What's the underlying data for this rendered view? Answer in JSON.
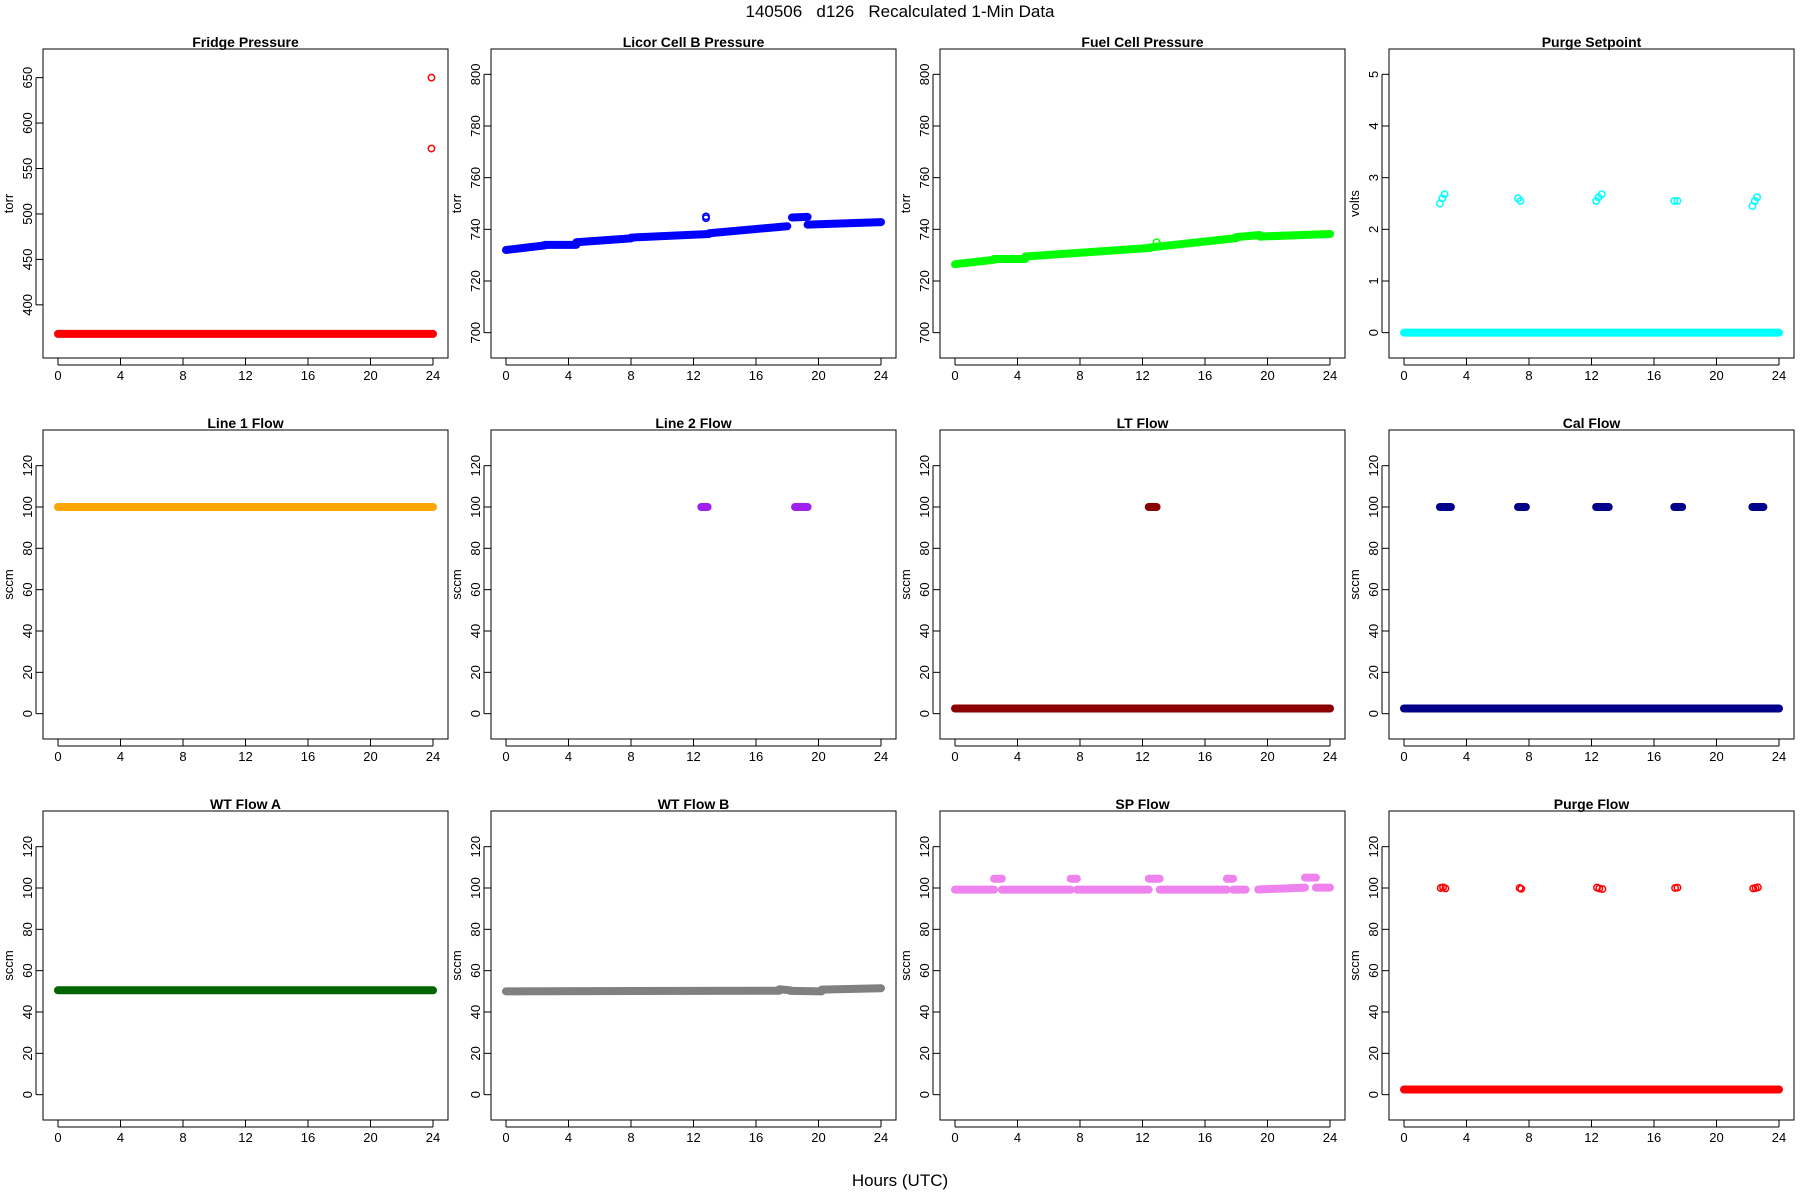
{
  "page": {
    "title": "140506   d126   Recalculated 1-Min Data",
    "xlabel": "Hours (UTC)"
  },
  "chart_data": [
    {
      "type": "scatter",
      "title": "Fridge Pressure",
      "xlabel": "",
      "ylabel": "torr",
      "xlim": [
        0,
        24
      ],
      "xticks": [
        0,
        4,
        8,
        12,
        16,
        20,
        24
      ],
      "ylim": [
        358,
        665
      ],
      "yticks": [
        400,
        450,
        500,
        550,
        600,
        650
      ],
      "series": [
        {
          "color": "#ff0000",
          "segments": [
            {
              "x0": 0,
              "x1": 24,
              "y0": 368,
              "y1": 368
            }
          ],
          "points": [
            {
              "x": 23.9,
              "y": 650
            },
            {
              "x": 23.9,
              "y": 572
            }
          ]
        }
      ]
    },
    {
      "type": "scatter",
      "title": "Licor Cell B Pressure",
      "xlabel": "",
      "ylabel": "torr",
      "xlim": [
        0,
        24
      ],
      "xticks": [
        0,
        4,
        8,
        12,
        16,
        20,
        24
      ],
      "ylim": [
        696,
        804
      ],
      "yticks": [
        700,
        720,
        740,
        760,
        780,
        800
      ],
      "series": [
        {
          "color": "#0000ff",
          "segments": [
            {
              "x0": 0,
              "x1": 2.5,
              "y0": 732,
              "y1": 733.8
            },
            {
              "x0": 2.5,
              "x1": 4.5,
              "y0": 734,
              "y1": 734
            },
            {
              "x0": 4.5,
              "x1": 8,
              "y0": 735,
              "y1": 736.5
            },
            {
              "x0": 8,
              "x1": 13,
              "y0": 736.8,
              "y1": 738.2
            },
            {
              "x0": 13,
              "x1": 18,
              "y0": 738.5,
              "y1": 741.2
            },
            {
              "x0": 18.3,
              "x1": 19.3,
              "y0": 744.6,
              "y1": 744.8
            },
            {
              "x0": 19.3,
              "x1": 24,
              "y0": 741.8,
              "y1": 742.8
            }
          ],
          "points": [
            {
              "x": 12.8,
              "y": 745
            },
            {
              "x": 12.8,
              "y": 744.3
            }
          ]
        }
      ]
    },
    {
      "type": "scatter",
      "title": "Fuel Cell Pressure",
      "xlabel": "",
      "ylabel": "torr",
      "xlim": [
        0,
        24
      ],
      "xticks": [
        0,
        4,
        8,
        12,
        16,
        20,
        24
      ],
      "ylim": [
        696,
        804
      ],
      "yticks": [
        700,
        720,
        740,
        760,
        780,
        800
      ],
      "series": [
        {
          "color": "#00ff00",
          "segments": [
            {
              "x0": 0,
              "x1": 2.5,
              "y0": 726.5,
              "y1": 728.2
            },
            {
              "x0": 2.5,
              "x1": 4.5,
              "y0": 728.5,
              "y1": 728.5
            },
            {
              "x0": 4.5,
              "x1": 12.5,
              "y0": 729.5,
              "y1": 732.8
            },
            {
              "x0": 12.5,
              "x1": 18,
              "y0": 733,
              "y1": 736.6
            },
            {
              "x0": 18,
              "x1": 19.5,
              "y0": 737,
              "y1": 737.8
            },
            {
              "x0": 19.5,
              "x1": 24,
              "y0": 737.2,
              "y1": 738.2
            }
          ],
          "points": [
            {
              "x": 12.9,
              "y": 735
            }
          ]
        }
      ]
    },
    {
      "type": "scatter",
      "title": "Purge Setpoint",
      "xlabel": "",
      "ylabel": "volts",
      "xlim": [
        0,
        24
      ],
      "xticks": [
        0,
        4,
        8,
        12,
        16,
        20,
        24
      ],
      "ylim": [
        -0.2,
        5.2
      ],
      "yticks": [
        0,
        1,
        2,
        3,
        4,
        5
      ],
      "series": [
        {
          "color": "#00ffff",
          "segments": [
            {
              "x0": 0,
              "x1": 24,
              "y0": 0,
              "y1": 0
            }
          ],
          "points": [
            {
              "x": 2.3,
              "y": 2.5
            },
            {
              "x": 2.45,
              "y": 2.6
            },
            {
              "x": 2.6,
              "y": 2.68
            },
            {
              "x": 7.3,
              "y": 2.6
            },
            {
              "x": 7.45,
              "y": 2.55
            },
            {
              "x": 12.3,
              "y": 2.55
            },
            {
              "x": 12.45,
              "y": 2.62
            },
            {
              "x": 12.65,
              "y": 2.68
            },
            {
              "x": 17.3,
              "y": 2.55
            },
            {
              "x": 17.5,
              "y": 2.55
            },
            {
              "x": 22.3,
              "y": 2.45
            },
            {
              "x": 22.45,
              "y": 2.55
            },
            {
              "x": 22.6,
              "y": 2.62
            }
          ]
        }
      ]
    },
    {
      "type": "scatter",
      "title": "Line 1 Flow",
      "xlabel": "",
      "ylabel": "sccm",
      "xlim": [
        0,
        24
      ],
      "xticks": [
        0,
        4,
        8,
        12,
        16,
        20,
        24
      ],
      "ylim": [
        -5,
        130
      ],
      "yticks": [
        0,
        20,
        40,
        60,
        80,
        100,
        120
      ],
      "series": [
        {
          "color": "#ffa500",
          "segments": [
            {
              "x0": 0,
              "x1": 24,
              "y0": 100,
              "y1": 100
            }
          ],
          "points": []
        }
      ]
    },
    {
      "type": "scatter",
      "title": "Line 2 Flow",
      "xlabel": "",
      "ylabel": "sccm",
      "xlim": [
        0,
        24
      ],
      "xticks": [
        0,
        4,
        8,
        12,
        16,
        20,
        24
      ],
      "ylim": [
        -5,
        130
      ],
      "yticks": [
        0,
        20,
        40,
        60,
        80,
        100,
        120
      ],
      "series": [
        {
          "color": "#a020f0",
          "segments": [
            {
              "x0": 12.5,
              "x1": 12.9,
              "y0": 100,
              "y1": 100
            },
            {
              "x0": 18.5,
              "x1": 19.3,
              "y0": 100,
              "y1": 100
            }
          ],
          "points": []
        }
      ]
    },
    {
      "type": "scatter",
      "title": "LT Flow",
      "xlabel": "",
      "ylabel": "sccm",
      "xlim": [
        0,
        24
      ],
      "xticks": [
        0,
        4,
        8,
        12,
        16,
        20,
        24
      ],
      "ylim": [
        -5,
        130
      ],
      "yticks": [
        0,
        20,
        40,
        60,
        80,
        100,
        120
      ],
      "series": [
        {
          "color": "#8b0000",
          "segments": [
            {
              "x0": 0,
              "x1": 24,
              "y0": 2.5,
              "y1": 2.5
            },
            {
              "x0": 12.4,
              "x1": 12.9,
              "y0": 100,
              "y1": 100
            }
          ],
          "points": []
        }
      ]
    },
    {
      "type": "scatter",
      "title": "Cal Flow",
      "xlabel": "",
      "ylabel": "sccm",
      "xlim": [
        0,
        24
      ],
      "xticks": [
        0,
        4,
        8,
        12,
        16,
        20,
        24
      ],
      "ylim": [
        -5,
        130
      ],
      "yticks": [
        0,
        20,
        40,
        60,
        80,
        100,
        120
      ],
      "series": [
        {
          "color": "#00008b",
          "segments": [
            {
              "x0": 0,
              "x1": 24,
              "y0": 2.5,
              "y1": 2.5
            },
            {
              "x0": 2.3,
              "x1": 3.0,
              "y0": 100,
              "y1": 100
            },
            {
              "x0": 7.3,
              "x1": 7.8,
              "y0": 100,
              "y1": 100
            },
            {
              "x0": 12.3,
              "x1": 13.1,
              "y0": 100,
              "y1": 100
            },
            {
              "x0": 17.3,
              "x1": 17.8,
              "y0": 100,
              "y1": 100
            },
            {
              "x0": 22.3,
              "x1": 23.0,
              "y0": 100,
              "y1": 100
            }
          ],
          "points": []
        }
      ]
    },
    {
      "type": "scatter",
      "title": "WT Flow A",
      "xlabel": "",
      "ylabel": "sccm",
      "xlim": [
        0,
        24
      ],
      "xticks": [
        0,
        4,
        8,
        12,
        16,
        20,
        24
      ],
      "ylim": [
        -5,
        130
      ],
      "yticks": [
        0,
        20,
        40,
        60,
        80,
        100,
        120
      ],
      "series": [
        {
          "color": "#006400",
          "segments": [
            {
              "x0": 0,
              "x1": 24,
              "y0": 50.5,
              "y1": 50.5
            }
          ],
          "points": []
        }
      ]
    },
    {
      "type": "scatter",
      "title": "WT Flow B",
      "xlabel": "",
      "ylabel": "sccm",
      "xlim": [
        0,
        24
      ],
      "xticks": [
        0,
        4,
        8,
        12,
        16,
        20,
        24
      ],
      "ylim": [
        -5,
        130
      ],
      "yticks": [
        0,
        20,
        40,
        60,
        80,
        100,
        120
      ],
      "series": [
        {
          "color": "#808080",
          "segments": [
            {
              "x0": 0,
              "x1": 17.5,
              "y0": 50,
              "y1": 50.3
            },
            {
              "x0": 17.5,
              "x1": 18.2,
              "y0": 51,
              "y1": 50.5
            },
            {
              "x0": 18.2,
              "x1": 20.2,
              "y0": 50.2,
              "y1": 50
            },
            {
              "x0": 20.2,
              "x1": 24,
              "y0": 50.8,
              "y1": 51.5
            }
          ],
          "points": []
        }
      ]
    },
    {
      "type": "scatter",
      "title": "SP Flow",
      "xlabel": "",
      "ylabel": "sccm",
      "xlim": [
        0,
        24
      ],
      "xticks": [
        0,
        4,
        8,
        12,
        16,
        20,
        24
      ],
      "ylim": [
        -5,
        130
      ],
      "yticks": [
        0,
        20,
        40,
        60,
        80,
        100,
        120
      ],
      "series": [
        {
          "color": "#ee82ee",
          "segments": [
            {
              "x0": 0,
              "x1": 2.5,
              "y0": 99.2,
              "y1": 99.2
            },
            {
              "x0": 2.5,
              "x1": 3.0,
              "y0": 104.5,
              "y1": 104.5
            },
            {
              "x0": 3.0,
              "x1": 7.4,
              "y0": 99.2,
              "y1": 99.2
            },
            {
              "x0": 7.4,
              "x1": 7.8,
              "y0": 104.5,
              "y1": 104.5
            },
            {
              "x0": 7.8,
              "x1": 12.4,
              "y0": 99.2,
              "y1": 99.2
            },
            {
              "x0": 12.4,
              "x1": 13.1,
              "y0": 104.5,
              "y1": 104.5
            },
            {
              "x0": 13.1,
              "x1": 17.4,
              "y0": 99.2,
              "y1": 99.2
            },
            {
              "x0": 17.4,
              "x1": 17.8,
              "y0": 104.5,
              "y1": 104.5
            },
            {
              "x0": 17.8,
              "x1": 18.6,
              "y0": 99.2,
              "y1": 99.2
            },
            {
              "x0": 19.4,
              "x1": 22.4,
              "y0": 99.3,
              "y1": 100.2
            },
            {
              "x0": 22.4,
              "x1": 23.1,
              "y0": 105,
              "y1": 105
            },
            {
              "x0": 23.1,
              "x1": 24,
              "y0": 100.2,
              "y1": 100.2
            }
          ],
          "points": []
        }
      ]
    },
    {
      "type": "scatter",
      "title": "Purge Flow",
      "xlabel": "",
      "ylabel": "sccm",
      "xlim": [
        0,
        24
      ],
      "xticks": [
        0,
        4,
        8,
        12,
        16,
        20,
        24
      ],
      "ylim": [
        -5,
        130
      ],
      "yticks": [
        0,
        20,
        40,
        60,
        80,
        100,
        120
      ],
      "series": [
        {
          "color": "#ff0000",
          "segments": [
            {
              "x0": 0,
              "x1": 24,
              "y0": 2.5,
              "y1": 2.5
            }
          ],
          "points": [
            {
              "x": 2.35,
              "y": 100
            },
            {
              "x": 2.5,
              "y": 100.3
            },
            {
              "x": 2.65,
              "y": 99.8
            },
            {
              "x": 7.4,
              "y": 100
            },
            {
              "x": 7.5,
              "y": 99.6
            },
            {
              "x": 12.35,
              "y": 100.2
            },
            {
              "x": 12.5,
              "y": 99.8
            },
            {
              "x": 12.7,
              "y": 99.5
            },
            {
              "x": 17.35,
              "y": 100
            },
            {
              "x": 17.5,
              "y": 100.2
            },
            {
              "x": 22.35,
              "y": 99.8
            },
            {
              "x": 22.5,
              "y": 100
            },
            {
              "x": 22.65,
              "y": 100.3
            }
          ]
        }
      ]
    }
  ]
}
